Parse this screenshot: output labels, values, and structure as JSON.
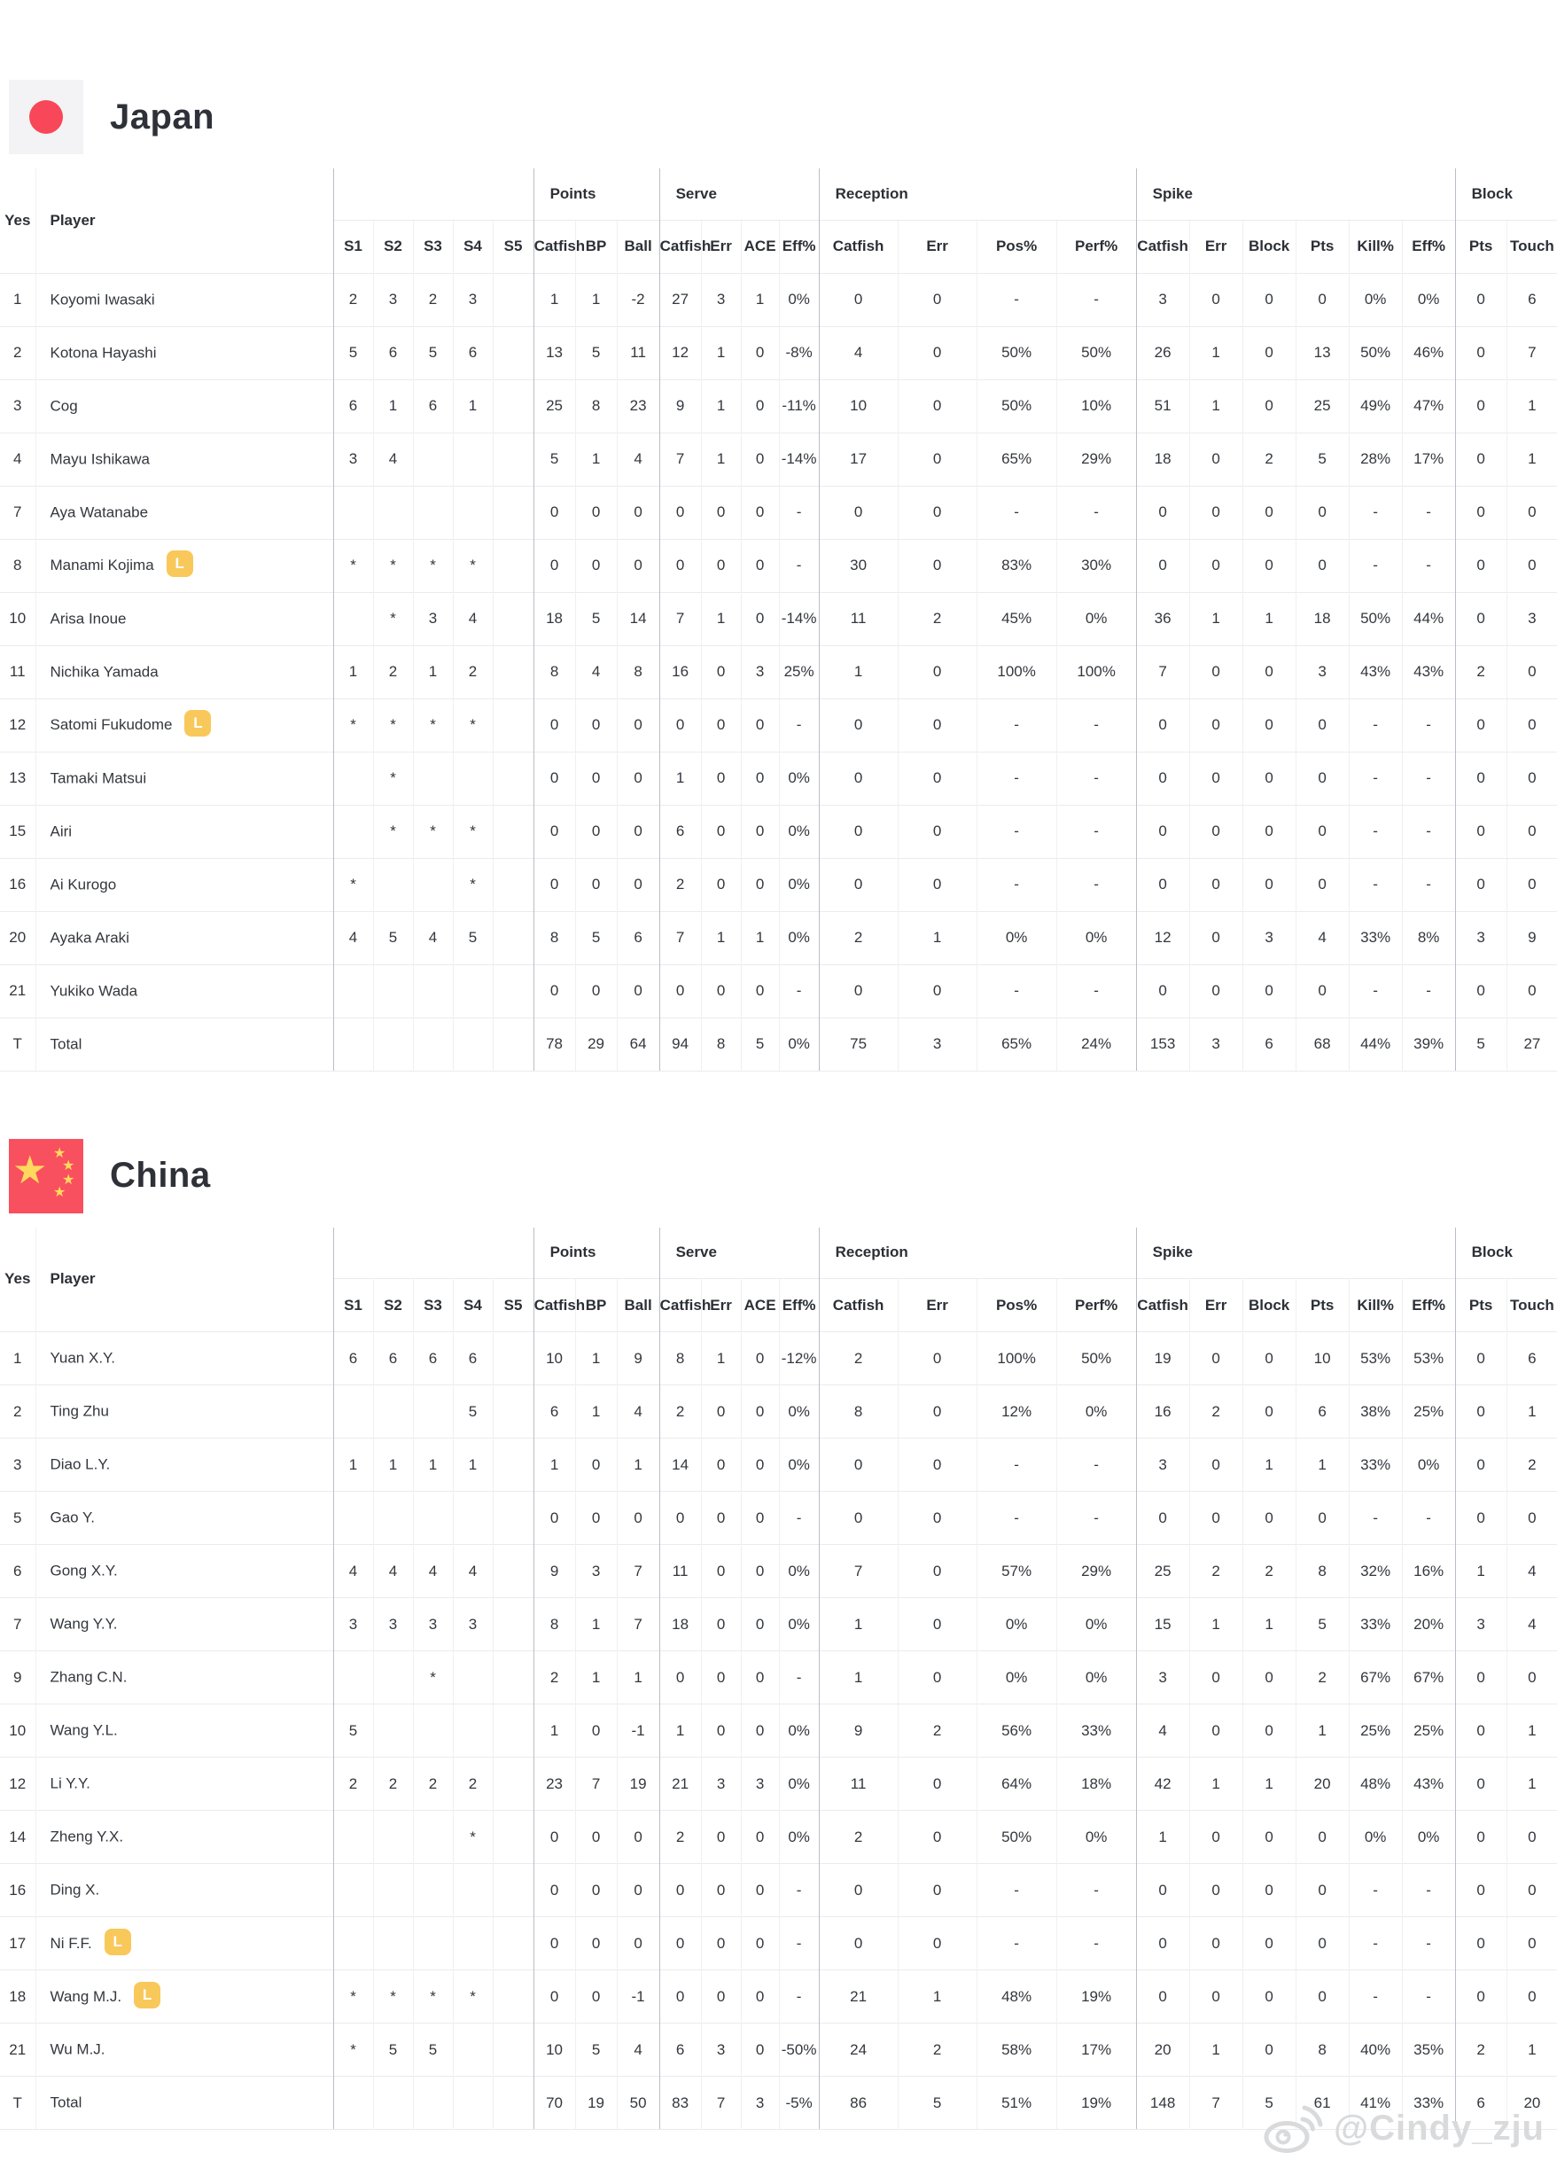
{
  "badges": {
    "libero": "L"
  },
  "watermark": {
    "text": "@Cindy_zju",
    "icon": "weibo-icon"
  },
  "colors": {
    "japan_flag_bg": "#f3f3f5",
    "japan_flag_circle": "#f84758",
    "china_flag_bg": "#f8505e",
    "china_flag_star": "#ffd95e",
    "libero_badge": "#f9c85a",
    "watermark_text": "#d9dadc"
  },
  "table_header": {
    "yes": "Yes",
    "player": "Player",
    "set_cols": [
      "S1",
      "S2",
      "S3",
      "S4",
      "S5"
    ],
    "groups": [
      {
        "label": "Points",
        "cols": [
          "Catfish",
          "BP",
          "Ball"
        ]
      },
      {
        "label": "Serve",
        "cols": [
          "Catfish",
          "Err",
          "ACE",
          "Eff%"
        ]
      },
      {
        "label": "Reception",
        "cols": [
          "Catfish",
          "Err",
          "Pos%",
          "Perf%"
        ]
      },
      {
        "label": "Spike",
        "cols": [
          "Catfish",
          "Err",
          "Block",
          "Pts",
          "Kill%",
          "Eff%"
        ]
      },
      {
        "label": "Block",
        "cols": [
          "Pts",
          "Touch"
        ]
      }
    ]
  },
  "teams": [
    {
      "name": "Japan",
      "rows": [
        {
          "no": "1",
          "player": "Koyomi Iwasaki",
          "libero": false,
          "cells": [
            "2",
            "3",
            "2",
            "3",
            "",
            "1",
            "1",
            "-2",
            "27",
            "3",
            "1",
            "0%",
            "0",
            "0",
            "-",
            "-",
            "3",
            "0",
            "0",
            "0",
            "0%",
            "0%",
            "0",
            "6"
          ]
        },
        {
          "no": "2",
          "player": "Kotona Hayashi",
          "libero": false,
          "cells": [
            "5",
            "6",
            "5",
            "6",
            "",
            "13",
            "5",
            "11",
            "12",
            "1",
            "0",
            "-8%",
            "4",
            "0",
            "50%",
            "50%",
            "26",
            "1",
            "0",
            "13",
            "50%",
            "46%",
            "0",
            "7"
          ]
        },
        {
          "no": "3",
          "player": "Cog",
          "libero": false,
          "cells": [
            "6",
            "1",
            "6",
            "1",
            "",
            "25",
            "8",
            "23",
            "9",
            "1",
            "0",
            "-11%",
            "10",
            "0",
            "50%",
            "10%",
            "51",
            "1",
            "0",
            "25",
            "49%",
            "47%",
            "0",
            "1"
          ]
        },
        {
          "no": "4",
          "player": "Mayu Ishikawa",
          "libero": false,
          "cells": [
            "3",
            "4",
            "",
            "",
            "",
            "5",
            "1",
            "4",
            "7",
            "1",
            "0",
            "-14%",
            "17",
            "0",
            "65%",
            "29%",
            "18",
            "0",
            "2",
            "5",
            "28%",
            "17%",
            "0",
            "1"
          ]
        },
        {
          "no": "7",
          "player": "Aya Watanabe",
          "libero": false,
          "cells": [
            "",
            "",
            "",
            "",
            "",
            "0",
            "0",
            "0",
            "0",
            "0",
            "0",
            "-",
            "0",
            "0",
            "-",
            "-",
            "0",
            "0",
            "0",
            "0",
            "-",
            "-",
            "0",
            "0"
          ]
        },
        {
          "no": "8",
          "player": "Manami Kojima",
          "libero": true,
          "cells": [
            "*",
            "*",
            "*",
            "*",
            "",
            "0",
            "0",
            "0",
            "0",
            "0",
            "0",
            "-",
            "30",
            "0",
            "83%",
            "30%",
            "0",
            "0",
            "0",
            "0",
            "-",
            "-",
            "0",
            "0"
          ]
        },
        {
          "no": "10",
          "player": "Arisa Inoue",
          "libero": false,
          "cells": [
            "",
            "*",
            "3",
            "4",
            "",
            "18",
            "5",
            "14",
            "7",
            "1",
            "0",
            "-14%",
            "11",
            "2",
            "45%",
            "0%",
            "36",
            "1",
            "1",
            "18",
            "50%",
            "44%",
            "0",
            "3"
          ]
        },
        {
          "no": "11",
          "player": "Nichika Yamada",
          "libero": false,
          "cells": [
            "1",
            "2",
            "1",
            "2",
            "",
            "8",
            "4",
            "8",
            "16",
            "0",
            "3",
            "25%",
            "1",
            "0",
            "100%",
            "100%",
            "7",
            "0",
            "0",
            "3",
            "43%",
            "43%",
            "2",
            "0"
          ]
        },
        {
          "no": "12",
          "player": "Satomi Fukudome",
          "libero": true,
          "cells": [
            "*",
            "*",
            "*",
            "*",
            "",
            "0",
            "0",
            "0",
            "0",
            "0",
            "0",
            "-",
            "0",
            "0",
            "-",
            "-",
            "0",
            "0",
            "0",
            "0",
            "-",
            "-",
            "0",
            "0"
          ]
        },
        {
          "no": "13",
          "player": "Tamaki Matsui",
          "libero": false,
          "cells": [
            "",
            "*",
            "",
            "",
            "",
            "0",
            "0",
            "0",
            "1",
            "0",
            "0",
            "0%",
            "0",
            "0",
            "-",
            "-",
            "0",
            "0",
            "0",
            "0",
            "-",
            "-",
            "0",
            "0"
          ]
        },
        {
          "no": "15",
          "player": "Airi",
          "libero": false,
          "cells": [
            "",
            "*",
            "*",
            "*",
            "",
            "0",
            "0",
            "0",
            "6",
            "0",
            "0",
            "0%",
            "0",
            "0",
            "-",
            "-",
            "0",
            "0",
            "0",
            "0",
            "-",
            "-",
            "0",
            "0"
          ]
        },
        {
          "no": "16",
          "player": "Ai Kurogo",
          "libero": false,
          "cells": [
            "*",
            "",
            "",
            "*",
            "",
            "0",
            "0",
            "0",
            "2",
            "0",
            "0",
            "0%",
            "0",
            "0",
            "-",
            "-",
            "0",
            "0",
            "0",
            "0",
            "-",
            "-",
            "0",
            "0"
          ]
        },
        {
          "no": "20",
          "player": "Ayaka Araki",
          "libero": false,
          "cells": [
            "4",
            "5",
            "4",
            "5",
            "",
            "8",
            "5",
            "6",
            "7",
            "1",
            "1",
            "0%",
            "2",
            "1",
            "0%",
            "0%",
            "12",
            "0",
            "3",
            "4",
            "33%",
            "8%",
            "3",
            "9"
          ]
        },
        {
          "no": "21",
          "player": "Yukiko Wada",
          "libero": false,
          "cells": [
            "",
            "",
            "",
            "",
            "",
            "0",
            "0",
            "0",
            "0",
            "0",
            "0",
            "-",
            "0",
            "0",
            "-",
            "-",
            "0",
            "0",
            "0",
            "0",
            "-",
            "-",
            "0",
            "0"
          ]
        },
        {
          "no": "T",
          "player": "Total",
          "libero": false,
          "cells": [
            "",
            "",
            "",
            "",
            "",
            "78",
            "29",
            "64",
            "94",
            "8",
            "5",
            "0%",
            "75",
            "3",
            "65%",
            "24%",
            "153",
            "3",
            "6",
            "68",
            "44%",
            "39%",
            "5",
            "27"
          ]
        }
      ]
    },
    {
      "name": "China",
      "rows": [
        {
          "no": "1",
          "player": "Yuan X.Y.",
          "libero": false,
          "cells": [
            "6",
            "6",
            "6",
            "6",
            "",
            "10",
            "1",
            "9",
            "8",
            "1",
            "0",
            "-12%",
            "2",
            "0",
            "100%",
            "50%",
            "19",
            "0",
            "0",
            "10",
            "53%",
            "53%",
            "0",
            "6"
          ]
        },
        {
          "no": "2",
          "player": "Ting Zhu",
          "libero": false,
          "cells": [
            "",
            "",
            "",
            "5",
            "",
            "6",
            "1",
            "4",
            "2",
            "0",
            "0",
            "0%",
            "8",
            "0",
            "12%",
            "0%",
            "16",
            "2",
            "0",
            "6",
            "38%",
            "25%",
            "0",
            "1"
          ]
        },
        {
          "no": "3",
          "player": "Diao L.Y.",
          "libero": false,
          "cells": [
            "1",
            "1",
            "1",
            "1",
            "",
            "1",
            "0",
            "1",
            "14",
            "0",
            "0",
            "0%",
            "0",
            "0",
            "-",
            "-",
            "3",
            "0",
            "1",
            "1",
            "33%",
            "0%",
            "0",
            "2"
          ]
        },
        {
          "no": "5",
          "player": "Gao Y.",
          "libero": false,
          "cells": [
            "",
            "",
            "",
            "",
            "",
            "0",
            "0",
            "0",
            "0",
            "0",
            "0",
            "-",
            "0",
            "0",
            "-",
            "-",
            "0",
            "0",
            "0",
            "0",
            "-",
            "-",
            "0",
            "0"
          ]
        },
        {
          "no": "6",
          "player": "Gong X.Y.",
          "libero": false,
          "cells": [
            "4",
            "4",
            "4",
            "4",
            "",
            "9",
            "3",
            "7",
            "11",
            "0",
            "0",
            "0%",
            "7",
            "0",
            "57%",
            "29%",
            "25",
            "2",
            "2",
            "8",
            "32%",
            "16%",
            "1",
            "4"
          ]
        },
        {
          "no": "7",
          "player": "Wang Y.Y.",
          "libero": false,
          "cells": [
            "3",
            "3",
            "3",
            "3",
            "",
            "8",
            "1",
            "7",
            "18",
            "0",
            "0",
            "0%",
            "1",
            "0",
            "0%",
            "0%",
            "15",
            "1",
            "1",
            "5",
            "33%",
            "20%",
            "3",
            "4"
          ]
        },
        {
          "no": "9",
          "player": "Zhang C.N.",
          "libero": false,
          "cells": [
            "",
            "",
            "*",
            "",
            "",
            "2",
            "1",
            "1",
            "0",
            "0",
            "0",
            "-",
            "1",
            "0",
            "0%",
            "0%",
            "3",
            "0",
            "0",
            "2",
            "67%",
            "67%",
            "0",
            "0"
          ]
        },
        {
          "no": "10",
          "player": "Wang Y.L.",
          "libero": false,
          "cells": [
            "5",
            "",
            "",
            "",
            "",
            "1",
            "0",
            "-1",
            "1",
            "0",
            "0",
            "0%",
            "9",
            "2",
            "56%",
            "33%",
            "4",
            "0",
            "0",
            "1",
            "25%",
            "25%",
            "0",
            "1"
          ]
        },
        {
          "no": "12",
          "player": "Li Y.Y.",
          "libero": false,
          "cells": [
            "2",
            "2",
            "2",
            "2",
            "",
            "23",
            "7",
            "19",
            "21",
            "3",
            "3",
            "0%",
            "11",
            "0",
            "64%",
            "18%",
            "42",
            "1",
            "1",
            "20",
            "48%",
            "43%",
            "0",
            "1"
          ]
        },
        {
          "no": "14",
          "player": "Zheng Y.X.",
          "libero": false,
          "cells": [
            "",
            "",
            "",
            "*",
            "",
            "0",
            "0",
            "0",
            "2",
            "0",
            "0",
            "0%",
            "2",
            "0",
            "50%",
            "0%",
            "1",
            "0",
            "0",
            "0",
            "0%",
            "0%",
            "0",
            "0"
          ]
        },
        {
          "no": "16",
          "player": "Ding X.",
          "libero": false,
          "cells": [
            "",
            "",
            "",
            "",
            "",
            "0",
            "0",
            "0",
            "0",
            "0",
            "0",
            "-",
            "0",
            "0",
            "-",
            "-",
            "0",
            "0",
            "0",
            "0",
            "-",
            "-",
            "0",
            "0"
          ]
        },
        {
          "no": "17",
          "player": "Ni F.F.",
          "libero": true,
          "cells": [
            "",
            "",
            "",
            "",
            "",
            "0",
            "0",
            "0",
            "0",
            "0",
            "0",
            "-",
            "0",
            "0",
            "-",
            "-",
            "0",
            "0",
            "0",
            "0",
            "-",
            "-",
            "0",
            "0"
          ]
        },
        {
          "no": "18",
          "player": "Wang M.J.",
          "libero": true,
          "cells": [
            "*",
            "*",
            "*",
            "*",
            "",
            "0",
            "0",
            "-1",
            "0",
            "0",
            "0",
            "-",
            "21",
            "1",
            "48%",
            "19%",
            "0",
            "0",
            "0",
            "0",
            "-",
            "-",
            "0",
            "0"
          ]
        },
        {
          "no": "21",
          "player": "Wu M.J.",
          "libero": false,
          "cells": [
            "*",
            "5",
            "5",
            "",
            "",
            "10",
            "5",
            "4",
            "6",
            "3",
            "0",
            "-50%",
            "24",
            "2",
            "58%",
            "17%",
            "20",
            "1",
            "0",
            "8",
            "40%",
            "35%",
            "2",
            "1"
          ]
        },
        {
          "no": "T",
          "player": "Total",
          "libero": false,
          "cells": [
            "",
            "",
            "",
            "",
            "",
            "70",
            "19",
            "50",
            "83",
            "7",
            "3",
            "-5%",
            "86",
            "5",
            "51%",
            "19%",
            "148",
            "7",
            "5",
            "61",
            "41%",
            "33%",
            "6",
            "20"
          ]
        }
      ]
    }
  ]
}
